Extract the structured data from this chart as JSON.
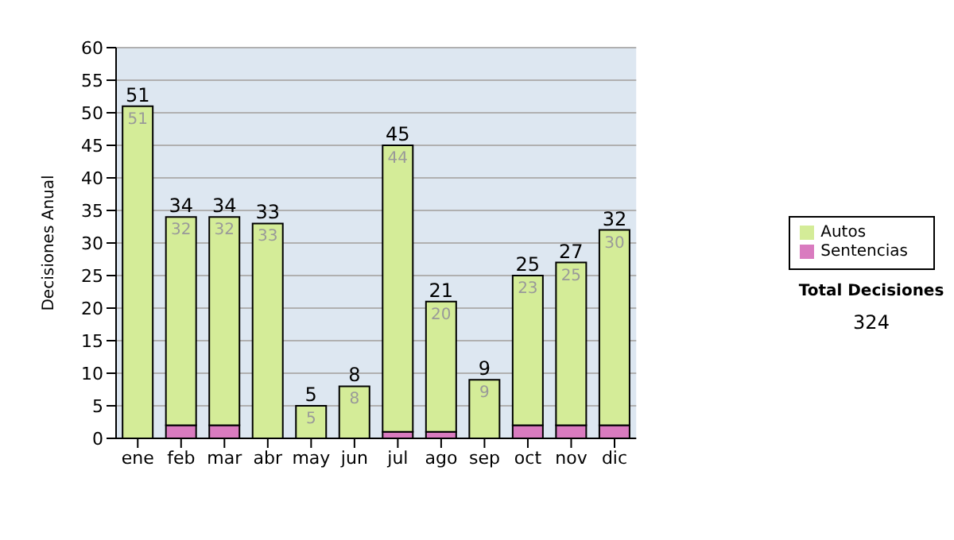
{
  "chart_data": {
    "type": "bar",
    "ylabel": "Decisiones Anual",
    "categories": [
      "ene",
      "feb",
      "mar",
      "abr",
      "may",
      "jun",
      "jul",
      "ago",
      "sep",
      "oct",
      "nov",
      "dic"
    ],
    "series": [
      {
        "name": "Sentencias",
        "color": "#d97bbf",
        "values": [
          0,
          2,
          2,
          0,
          0,
          0,
          1,
          1,
          0,
          2,
          2,
          2
        ]
      },
      {
        "name": "Autos",
        "color": "#d4ec98",
        "values": [
          51,
          32,
          32,
          33,
          5,
          8,
          44,
          20,
          9,
          23,
          25,
          30
        ],
        "value_labels": [
          "51",
          "32",
          "32",
          "33",
          "5",
          "8",
          "44",
          "20",
          "9",
          "23",
          "25",
          "30"
        ]
      }
    ],
    "stacked": true,
    "totals": [
      "51",
      "34",
      "34",
      "33",
      "5",
      "8",
      "45",
      "21",
      "9",
      "25",
      "27",
      "32"
    ],
    "ylim": [
      0,
      60
    ],
    "yticks": [
      0,
      5,
      10,
      15,
      20,
      25,
      30,
      35,
      40,
      45,
      50,
      55,
      60
    ],
    "grid": "y",
    "legend": "right",
    "annotations": [
      "Total Decisiones",
      "324"
    ]
  }
}
